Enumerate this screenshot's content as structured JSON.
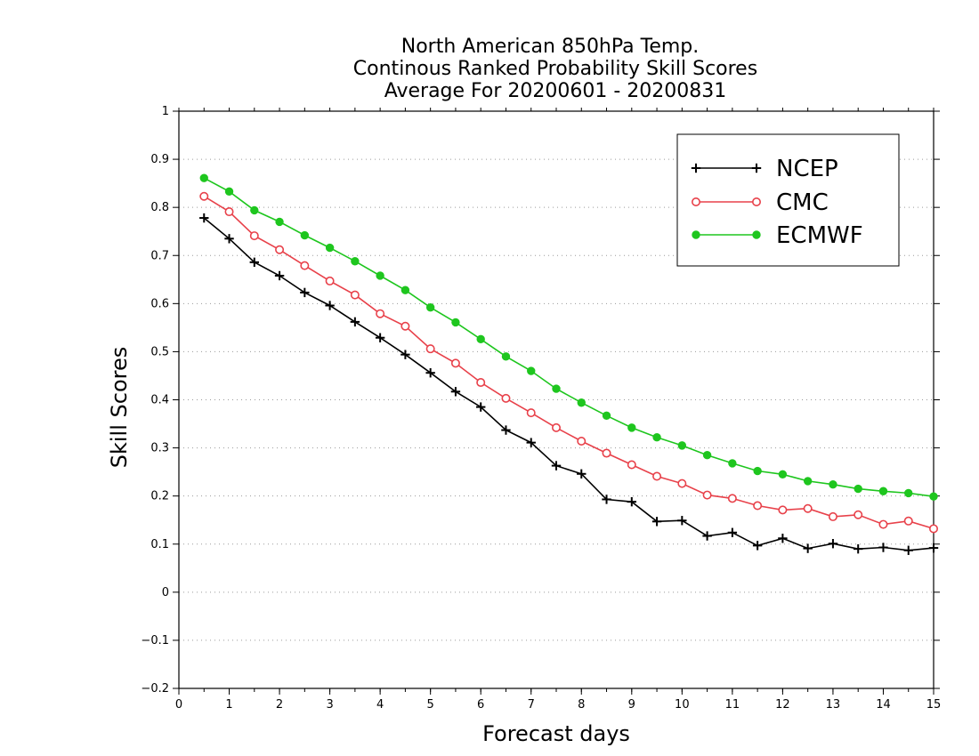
{
  "chart_data": {
    "type": "line",
    "title": [
      "North American 850hPa Temp.",
      "Continous Ranked Probability Skill Scores",
      "Average For 20200601 - 20200831"
    ],
    "xlabel": "Forecast days",
    "ylabel": "Skill Scores",
    "xlim": [
      0,
      15
    ],
    "ylim": [
      -0.2,
      1
    ],
    "xticks": [
      "0",
      "1",
      "2",
      "3",
      "4",
      "5",
      "6",
      "7",
      "8",
      "9",
      "10",
      "11",
      "12",
      "13",
      "14",
      "15"
    ],
    "yticks": [
      "−0.2",
      "−0.1",
      "0",
      "0.1",
      "0.2",
      "0.3",
      "0.4",
      "0.5",
      "0.6",
      "0.7",
      "0.8",
      "0.9",
      "1"
    ],
    "ytick_values": [
      -0.2,
      -0.1,
      0,
      0.1,
      0.2,
      0.3,
      0.4,
      0.5,
      0.6,
      0.7,
      0.8,
      0.9,
      1
    ],
    "grid": "horizontal dotted",
    "legend_position": "top-right",
    "x": [
      0.5,
      1,
      1.5,
      2,
      2.5,
      3,
      3.5,
      4,
      4.5,
      5,
      5.5,
      6,
      6.5,
      7,
      7.5,
      8,
      8.5,
      9,
      9.5,
      10,
      10.5,
      11,
      11.5,
      12,
      12.5,
      13,
      13.5,
      14,
      14.5,
      15
    ],
    "series": [
      {
        "name": "NCEP",
        "color": "#000000",
        "marker": "plus",
        "values": [
          0.778,
          0.735,
          0.686,
          0.658,
          0.623,
          0.596,
          0.562,
          0.529,
          0.494,
          0.456,
          0.417,
          0.385,
          0.337,
          0.311,
          0.263,
          0.246,
          0.193,
          0.188,
          0.147,
          0.149,
          0.117,
          0.124,
          0.097,
          0.112,
          0.091,
          0.101,
          0.09,
          0.093,
          0.087,
          0.092
        ]
      },
      {
        "name": "CMC",
        "color": "#e8414a",
        "marker": "open-circle",
        "values": [
          0.823,
          0.791,
          0.741,
          0.712,
          0.679,
          0.647,
          0.618,
          0.579,
          0.553,
          0.506,
          0.476,
          0.436,
          0.403,
          0.373,
          0.342,
          0.314,
          0.289,
          0.265,
          0.241,
          0.226,
          0.202,
          0.195,
          0.18,
          0.171,
          0.174,
          0.157,
          0.161,
          0.141,
          0.148,
          0.132
        ]
      },
      {
        "name": "ECMWF",
        "color": "#1ec61e",
        "marker": "filled-circle",
        "values": [
          0.861,
          0.833,
          0.794,
          0.77,
          0.742,
          0.716,
          0.688,
          0.658,
          0.628,
          0.592,
          0.561,
          0.526,
          0.49,
          0.46,
          0.423,
          0.394,
          0.367,
          0.342,
          0.322,
          0.305,
          0.285,
          0.268,
          0.252,
          0.245,
          0.231,
          0.224,
          0.215,
          0.21,
          0.206,
          0.199
        ]
      }
    ]
  }
}
